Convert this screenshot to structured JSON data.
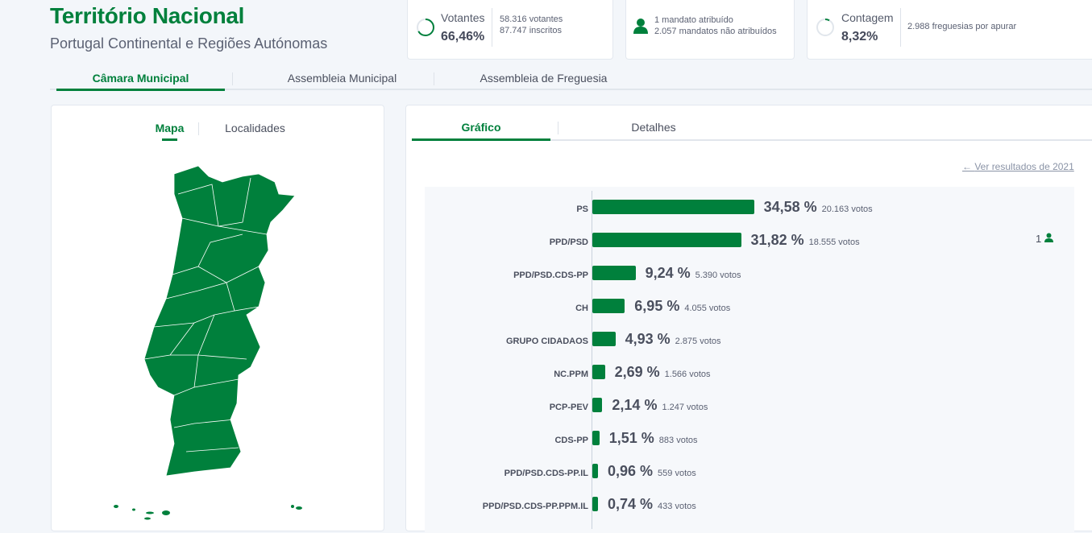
{
  "header": {
    "title": "Território Nacional",
    "subtitle": "Portugal Continental e Regiões Autónomas"
  },
  "stats": {
    "votantes": {
      "label": "Votantes",
      "value": "66,46%",
      "progress": 0.6646,
      "line1": "58.316 votantes",
      "line2": "87.747 inscritos"
    },
    "mandatos": {
      "line1": "1 mandato atribuído",
      "line2": "2.057 mandatos não atribuídos"
    },
    "contagem": {
      "label": "Contagem",
      "value": "8,32%",
      "progress": 0.0832,
      "line1": "2.988 freguesias por apurar"
    }
  },
  "tabs": [
    "Câmara Municipal",
    "Assembleia Municipal",
    "Assembleia de Freguesia"
  ],
  "left_tabs": [
    "Mapa",
    "Localidades"
  ],
  "right_tabs": [
    "Gráfico",
    "Detalhes"
  ],
  "link": "Ver resultados de 2021",
  "accent": "#00803c",
  "chart_data": {
    "type": "bar",
    "categories": [
      "PS",
      "PPD/PSD",
      "PPD/PSD.CDS-PP",
      "CH",
      "GRUPO CIDADAOS",
      "NC.PPM",
      "PCP-PEV",
      "CDS-PP",
      "PPD/PSD.CDS-PP.IL",
      "PPD/PSD.CDS-PP.PPM.IL"
    ],
    "values": [
      34.58,
      31.82,
      9.24,
      6.95,
      4.93,
      2.69,
      2.14,
      1.51,
      0.96,
      0.74
    ],
    "pct_labels": [
      "34,58 %",
      "31,82 %",
      "9,24 %",
      "6,95 %",
      "4,93 %",
      "2,69 %",
      "2,14 %",
      "1,51 %",
      "0,96 %",
      "0,74 %"
    ],
    "votes": [
      "20.163 votos",
      "18.555 votos",
      "5.390 votos",
      "4.055 votos",
      "2.875 votos",
      "1.566 votos",
      "1.247 votos",
      "883 votos",
      "559 votos",
      "433 votos"
    ],
    "mandates": [
      "",
      "1",
      "",
      "",
      "",
      "",
      "",
      "",
      "",
      ""
    ]
  }
}
